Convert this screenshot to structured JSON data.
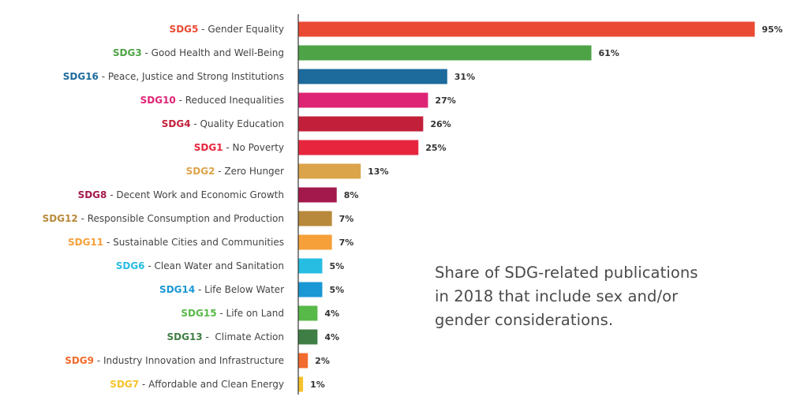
{
  "chart_data": {
    "type": "bar",
    "orientation": "horizontal",
    "title": "Share of SDG-related publications in 2018 that include sex and/or gender considerations.",
    "xlim": [
      0,
      100
    ],
    "unit": "%",
    "grid": false,
    "series": [
      {
        "code": "SDG5",
        "name": " - Gender Equality",
        "value": 95,
        "label": "95%",
        "color": "#ea4a33"
      },
      {
        "code": "SDG3",
        "name": " - Good Health and Well-Being",
        "value": 61,
        "label": "61%",
        "color": "#4ea346"
      },
      {
        "code": "SDG16",
        "name": " - Peace, Justice and Strong Institutions",
        "value": 31,
        "label": "31%",
        "color": "#1d6a9c"
      },
      {
        "code": "SDG10",
        "name": " - Reduced Inequalities",
        "value": 27,
        "label": "27%",
        "color": "#dd2475"
      },
      {
        "code": "SDG4",
        "name": " - Quality Education",
        "value": 26,
        "label": "26%",
        "color": "#c2203a"
      },
      {
        "code": "SDG1",
        "name": " - No Poverty",
        "value": 25,
        "label": "25%",
        "color": "#e7263e"
      },
      {
        "code": "SDG2",
        "name": " - Zero Hunger",
        "value": 13,
        "label": "13%",
        "color": "#dca44a"
      },
      {
        "code": "SDG8",
        "name": " - Decent Work and Economic Growth",
        "value": 8,
        "label": "8%",
        "color": "#a3194b"
      },
      {
        "code": "SDG12",
        "name": " - Responsible Consumption and Production",
        "value": 7,
        "label": "7%",
        "color": "#b8893a"
      },
      {
        "code": "SDG11",
        "name": " - Sustainable Cities and Communities",
        "value": 7,
        "label": "7%",
        "color": "#f6a03a"
      },
      {
        "code": "SDG6",
        "name": " - Clean Water and Sanitation",
        "value": 5,
        "label": "5%",
        "color": "#27bde2"
      },
      {
        "code": "SDG14",
        "name": " - Life Below Water",
        "value": 5,
        "label": "5%",
        "color": "#1a97d5"
      },
      {
        "code": "SDG15",
        "name": " - Life on Land",
        "value": 4,
        "label": "4%",
        "color": "#57b947"
      },
      {
        "code": "SDG13",
        "name": " -  Climate Action",
        "value": 4,
        "label": "4%",
        "color": "#3f7e44"
      },
      {
        "code": "SDG9",
        "name": " - Industry Innovation and Infrastructure",
        "value": 2,
        "label": "2%",
        "color": "#f26a2d"
      },
      {
        "code": "SDG7",
        "name": " - Affordable and Clean Energy",
        "value": 1,
        "label": "1%",
        "color": "#f5c22b"
      }
    ]
  },
  "caption": {
    "line1": "Share of SDG-related publications",
    "line2": "in 2018 that include sex and/or",
    "line3": "gender considerations."
  }
}
